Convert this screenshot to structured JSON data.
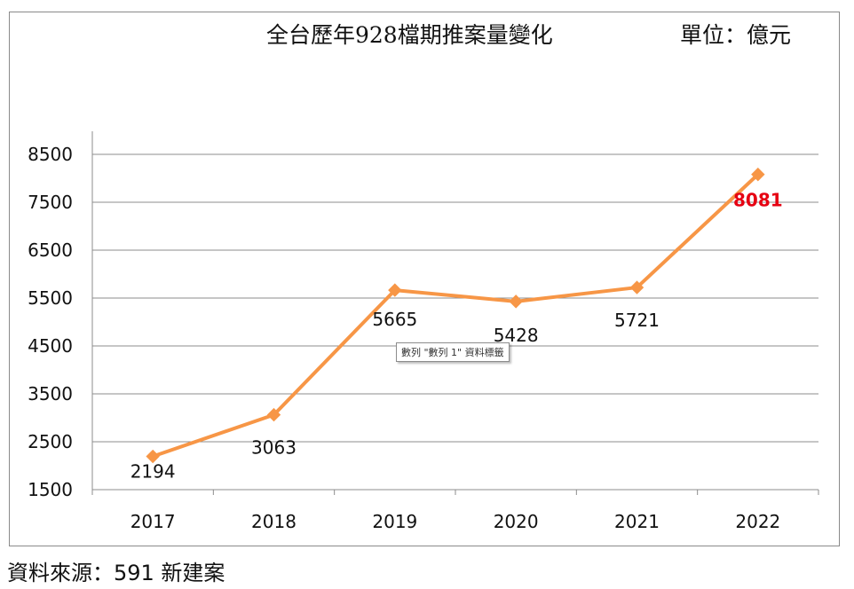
{
  "chart_data": {
    "type": "line",
    "title": "全台歷年928檔期推案量變化",
    "unit_label": "單位：億元",
    "categories": [
      "2017",
      "2018",
      "2019",
      "2020",
      "2021",
      "2022"
    ],
    "series": [
      {
        "values": [
          2194,
          3063,
          5665,
          5428,
          5721,
          8081
        ],
        "color": "#f79646"
      }
    ],
    "data_labels": [
      "2194",
      "3063",
      "5665",
      "5428",
      "5721",
      "8081"
    ],
    "highlight_index": 5,
    "highlight_color": "#e60012",
    "ylim": [
      1500,
      8500
    ],
    "y_ticks": [
      "1500",
      "2500",
      "3500",
      "4500",
      "5500",
      "6500",
      "7500",
      "8500"
    ],
    "grid": true,
    "marker": "diamond",
    "xlabel": "",
    "ylabel": ""
  },
  "tooltip_text": "數列 \"數列 1\" 資料標籤",
  "source_note": "資料來源：591 新建案"
}
